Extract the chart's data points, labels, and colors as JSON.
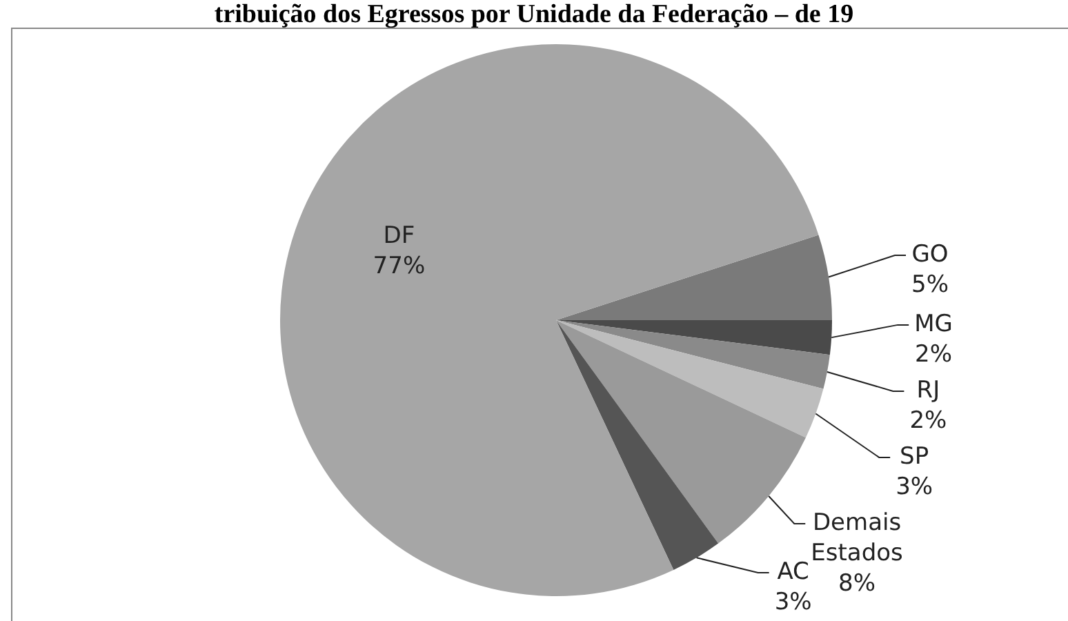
{
  "chart_data": {
    "type": "pie",
    "title": "tribuição dos Egressos por Unidade da Federação – de 19",
    "categories": [
      "GO",
      "MG",
      "RJ",
      "SP",
      "Demais Estados",
      "AC",
      "DF"
    ],
    "values": [
      5,
      2,
      2,
      3,
      8,
      3,
      77
    ],
    "colors": [
      "#7a7a7a",
      "#4a4a4a",
      "#8a8a8a",
      "#bdbdbd",
      "#9a9a9a",
      "#555555",
      "#a6a6a6"
    ],
    "value_labels": [
      "5%",
      "2%",
      "2%",
      "3%",
      "8%",
      "3%",
      "77%"
    ]
  }
}
